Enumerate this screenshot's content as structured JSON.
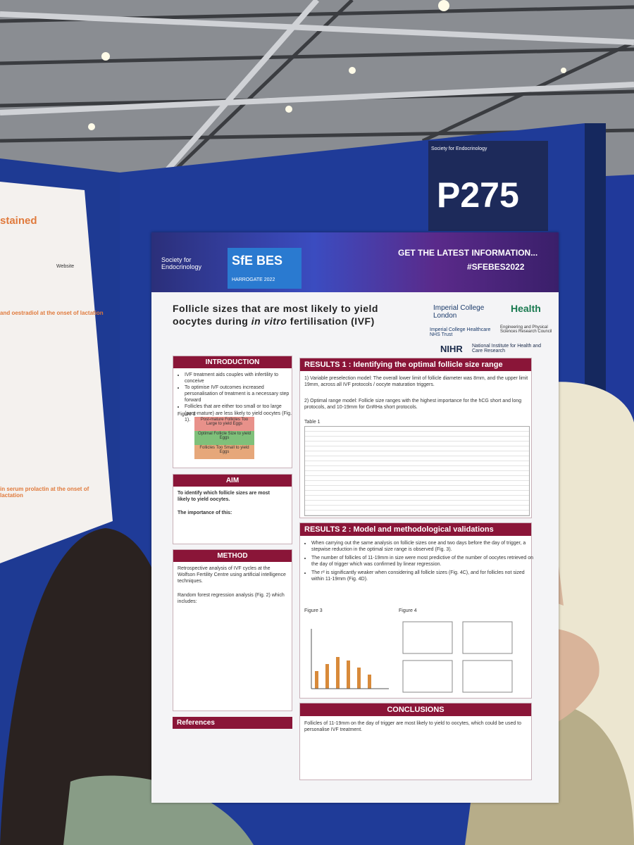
{
  "booth": {
    "number": "P275",
    "society": "Society for Endocrinology"
  },
  "left_poster": {
    "heading": "stained",
    "website": "Website",
    "section1": "and oestradiol at the onset of lactation",
    "section2": "in serum prolactin at the onset of lactation"
  },
  "poster": {
    "banner": {
      "society": "Society for Endocrinology",
      "event": "SfE BES",
      "location": "HARROGATE 2022",
      "cta": "GET THE LATEST INFORMATION...",
      "hashtag": "#SFEBES2022"
    },
    "title_line1": "Follicle sizes that are most likely to yield",
    "title_line2": [
      "oocytes during ",
      "in vitro",
      " fertilisation (IVF)"
    ],
    "logos": {
      "imperial": "Imperial College London",
      "health": "Health",
      "nhs": "Imperial College Healthcare NHS Trust",
      "epsrc": "Engineering and Physical Sciences Research Council",
      "nihr": "NIHR",
      "nihr_full": "National Institute for Health and Care Research"
    },
    "introduction": {
      "heading": "INTRODUCTION",
      "bullets": [
        "IVF treatment aids couples with infertility to conceive",
        "To optimise IVF outcomes increased personalisation of treatment is a necessary step forward",
        "Follicles that are either too small or too large (post-mature) are less likely to yield oocytes (Fig. 1)."
      ],
      "figure": "Figure 1",
      "zones": [
        "Post-mature Follicles Too Large to yield Eggs",
        "Optimal Follicle Size to yield Eggs",
        "Follicles Too Small to yield Eggs"
      ]
    },
    "aim": {
      "heading": "AIM",
      "text": "To identify which follicle sizes are most likely to yield oocytes.",
      "importance": "The importance of this:"
    },
    "method": {
      "heading": "METHOD",
      "text": "Retrospective analysis of IVF cycles at the Wolfson Fertility Centre using artificial intelligence techniques.",
      "sub": "Random forest regression analysis (Fig. 2) which includes:"
    },
    "results1": {
      "heading": "RESULTS 1 : Identifying the optimal follicle size range",
      "p1": "1) Variable preselection model: The overall lower limit of follicle diameter was 8mm, and the upper limit 19mm, across all IVF protocols / oocyte maturation triggers.",
      "p2": "2) Optimal range model: Follicle size ranges with the highest importance for the hCG short and long protocols, and 10-19mm for GnRHa short protocols.",
      "table": "Table 1"
    },
    "results2": {
      "heading": "RESULTS 2 : Model and methodological validations",
      "bullets": [
        "When carrying out the same analysis on follicle sizes one and two days before the day of trigger, a stepwise reduction in the optimal size range is observed (Fig. 3).",
        "The number of follicles of 11-19mm in size were most predictive of the number of oocytes retrieved on the day of trigger which was confirmed by linear regression.",
        "The r² is significantly weaker when considering all follicle sizes (Fig. 4C), and for follicles not sized within 11-19mm (Fig. 4D)."
      ],
      "figure3": "Figure 3",
      "figure4": "Figure 4"
    },
    "conclusions": {
      "heading": "CONCLUSIONS",
      "text": "Follicles of 11-19mm on the day of trigger are most likely to yield to oocytes, which could be used to personalise IVF treatment."
    },
    "references": "References"
  }
}
